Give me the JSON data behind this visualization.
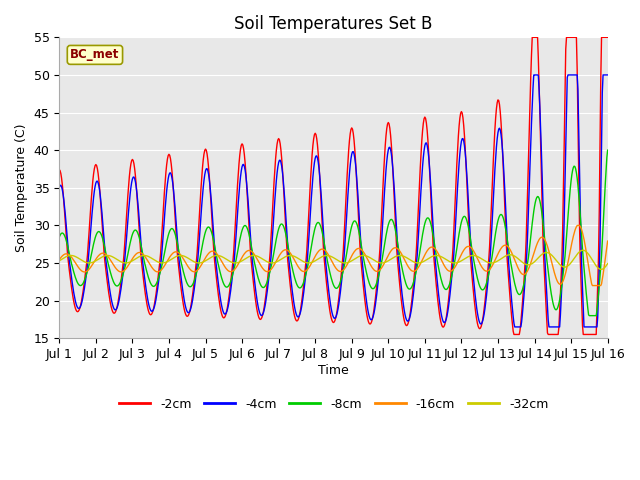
{
  "title": "Soil Temperatures Set B",
  "xlabel": "Time",
  "ylabel": "Soil Temperature (C)",
  "ylim": [
    15,
    55
  ],
  "xlim": [
    0,
    15
  ],
  "xtick_labels": [
    "Jul 1",
    "Jul 2",
    "Jul 3",
    "Jul 4",
    "Jul 5",
    "Jul 6",
    "Jul 7",
    "Jul 8",
    "Jul 9",
    "Jul 10",
    "Jul 11",
    "Jul 12",
    "Jul 13",
    "Jul 14",
    "Jul 15",
    "Jul 16"
  ],
  "xtick_positions": [
    0,
    1,
    2,
    3,
    4,
    5,
    6,
    7,
    8,
    9,
    10,
    11,
    12,
    13,
    14,
    15
  ],
  "ytick_positions": [
    15,
    20,
    25,
    30,
    35,
    40,
    45,
    50,
    55
  ],
  "colors": {
    "-2cm": "#ff0000",
    "-4cm": "#0000ff",
    "-8cm": "#00cc00",
    "-16cm": "#ff8800",
    "-32cm": "#cccc00"
  },
  "linewidth": 1.0,
  "annotation_text": "BC_met",
  "background_color": "#e8e8e8",
  "grid_color": "#ffffff",
  "title_fontsize": 12,
  "axis_fontsize": 9
}
